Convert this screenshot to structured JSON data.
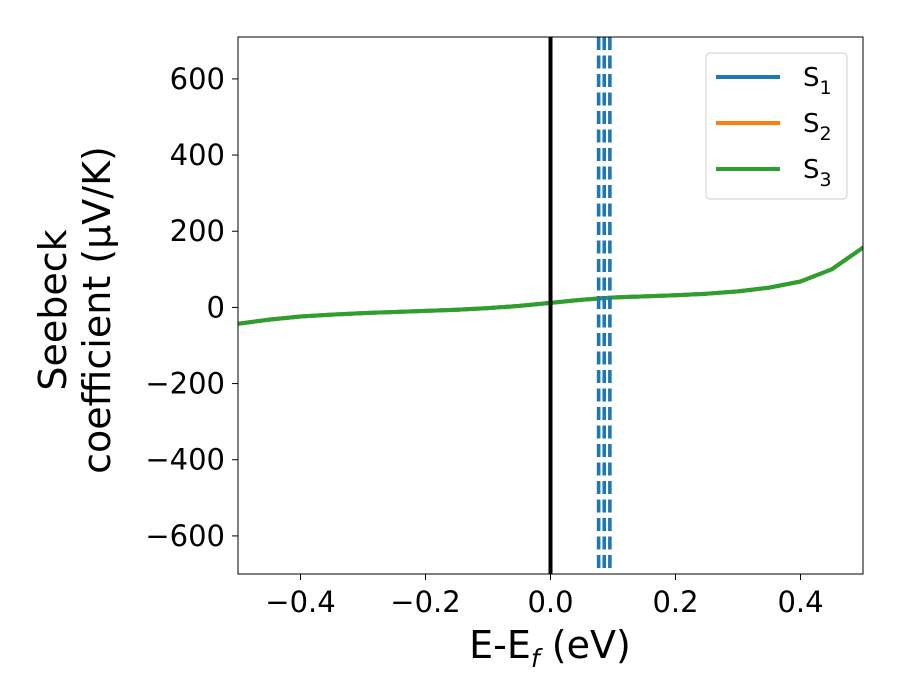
{
  "chart_data": {
    "type": "line",
    "title": "",
    "xlabel": {
      "main": "E-E",
      "sub": "f",
      "suffix": " (eV)"
    },
    "ylabel": {
      "line1": "Seebeck",
      "line2": "coefficient  (μV/K)"
    },
    "xlim": [
      -0.5,
      0.5
    ],
    "ylim": [
      -700,
      710
    ],
    "xticks": [
      -0.4,
      -0.2,
      0.0,
      0.2,
      0.4
    ],
    "xtick_labels": [
      "−0.4",
      "−0.2",
      "0.0",
      "0.2",
      "0.4"
    ],
    "yticks": [
      -600,
      -400,
      -200,
      0,
      200,
      400,
      600
    ],
    "ytick_labels": [
      "−600",
      "−400",
      "−200",
      "0",
      "200",
      "400",
      "600"
    ],
    "grid": false,
    "legend_position": "top-right",
    "series": [
      {
        "name": {
          "main": "S",
          "sub": "1"
        },
        "color": "#1f77b4",
        "x": [
          -0.5,
          -0.45,
          -0.4,
          -0.35,
          -0.3,
          -0.25,
          -0.2,
          -0.15,
          -0.1,
          -0.05,
          0.0,
          0.05,
          0.1,
          0.15,
          0.2,
          0.25,
          0.3,
          0.35,
          0.4,
          0.45,
          0.5
        ],
        "y": [
          -43,
          -32,
          -24,
          -19,
          -15,
          -12,
          -9,
          -6,
          -2,
          4,
          12,
          20,
          26,
          29,
          32,
          36,
          42,
          52,
          68,
          100,
          157
        ]
      },
      {
        "name": {
          "main": "S",
          "sub": "2"
        },
        "color": "#ff7f0e",
        "x": [
          -0.5,
          -0.45,
          -0.4,
          -0.35,
          -0.3,
          -0.25,
          -0.2,
          -0.15,
          -0.1,
          -0.05,
          0.0,
          0.05,
          0.1,
          0.15,
          0.2,
          0.25,
          0.3,
          0.35,
          0.4,
          0.45,
          0.5
        ],
        "y": [
          -43,
          -32,
          -24,
          -19,
          -15,
          -12,
          -9,
          -6,
          -2,
          4,
          12,
          20,
          26,
          29,
          32,
          36,
          42,
          52,
          68,
          100,
          157
        ]
      },
      {
        "name": {
          "main": "S",
          "sub": "3"
        },
        "color": "#2ca02c",
        "x": [
          -0.5,
          -0.45,
          -0.4,
          -0.35,
          -0.3,
          -0.25,
          -0.2,
          -0.15,
          -0.1,
          -0.05,
          0.0,
          0.05,
          0.1,
          0.15,
          0.2,
          0.25,
          0.3,
          0.35,
          0.4,
          0.45,
          0.5
        ],
        "y": [
          -43,
          -32,
          -24,
          -19,
          -15,
          -12,
          -9,
          -6,
          -2,
          4,
          12,
          20,
          26,
          29,
          32,
          36,
          42,
          52,
          68,
          100,
          157
        ]
      }
    ],
    "reference_lines": [
      {
        "x": 0.0,
        "color": "#000000",
        "style": "solid"
      },
      {
        "x": 0.077,
        "color": "#1f77b4",
        "style": "dashed"
      },
      {
        "x": 0.086,
        "color": "#1f77b4",
        "style": "dashed"
      },
      {
        "x": 0.095,
        "color": "#1f77b4",
        "style": "dashed"
      }
    ]
  }
}
